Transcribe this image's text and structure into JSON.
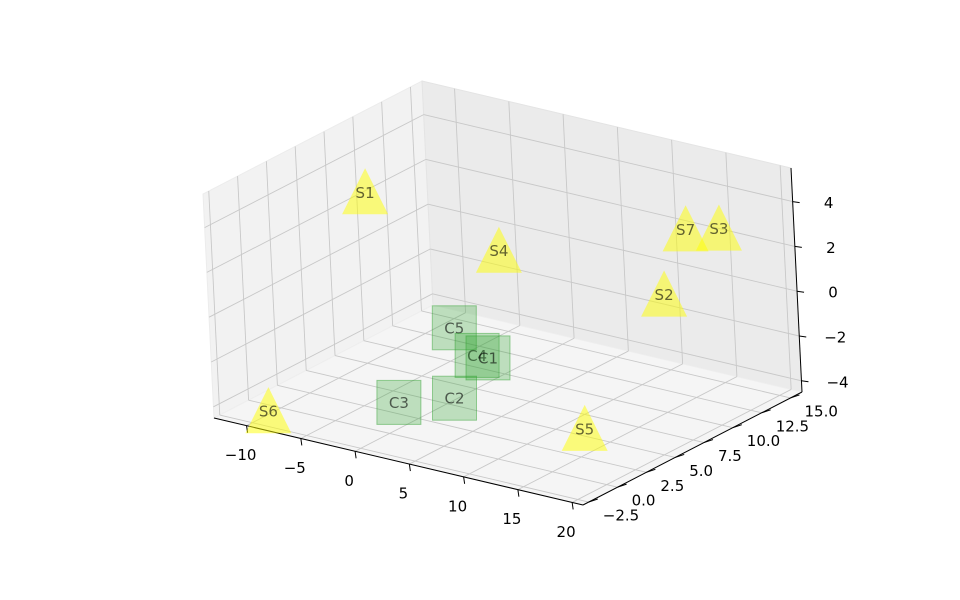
{
  "chart_data": {
    "type": "scatter",
    "projection": "3d",
    "grid": true,
    "xlim": [
      -13,
      21
    ],
    "ylim": [
      -3,
      16
    ],
    "zlim": [
      -4.5,
      5.5
    ],
    "x_ticks": [
      "−10",
      "−5",
      "0",
      "5",
      "10",
      "15",
      "20"
    ],
    "y_ticks": [
      "−2.5",
      "0.0",
      "2.5",
      "5.0",
      "7.5",
      "10.0",
      "12.5",
      "15.0"
    ],
    "z_ticks": [
      "−4",
      "−2",
      "0",
      "2",
      "4"
    ],
    "series": [
      {
        "marker": "triangle",
        "color": "#ffff00",
        "points": [
          {
            "label": "S1",
            "x": -10,
            "y": 8,
            "z": 3
          },
          {
            "label": "S2",
            "x": 13,
            "y": 12,
            "z": 0
          },
          {
            "label": "S3",
            "x": 14,
            "y": 16,
            "z": 2
          },
          {
            "label": "S4",
            "x": 0,
            "y": 10,
            "z": 1
          },
          {
            "label": "S5",
            "x": 16,
            "y": 2,
            "z": -3
          },
          {
            "label": "S6",
            "x": -9,
            "y": -2,
            "z": -4
          },
          {
            "label": "S7",
            "x": 12,
            "y": 15,
            "z": 2
          }
        ]
      },
      {
        "marker": "square",
        "color": "#2ca02c",
        "points": [
          {
            "label": "C1",
            "x": 4,
            "y": 5,
            "z": -2
          },
          {
            "label": "C2",
            "x": 4,
            "y": 2,
            "z": -3
          },
          {
            "label": "C3",
            "x": 1,
            "y": 0,
            "z": -3
          },
          {
            "label": "C4",
            "x": 3,
            "y": 5,
            "z": -2
          },
          {
            "label": "C5",
            "x": 1,
            "y": 5,
            "z": -1
          }
        ]
      }
    ]
  }
}
